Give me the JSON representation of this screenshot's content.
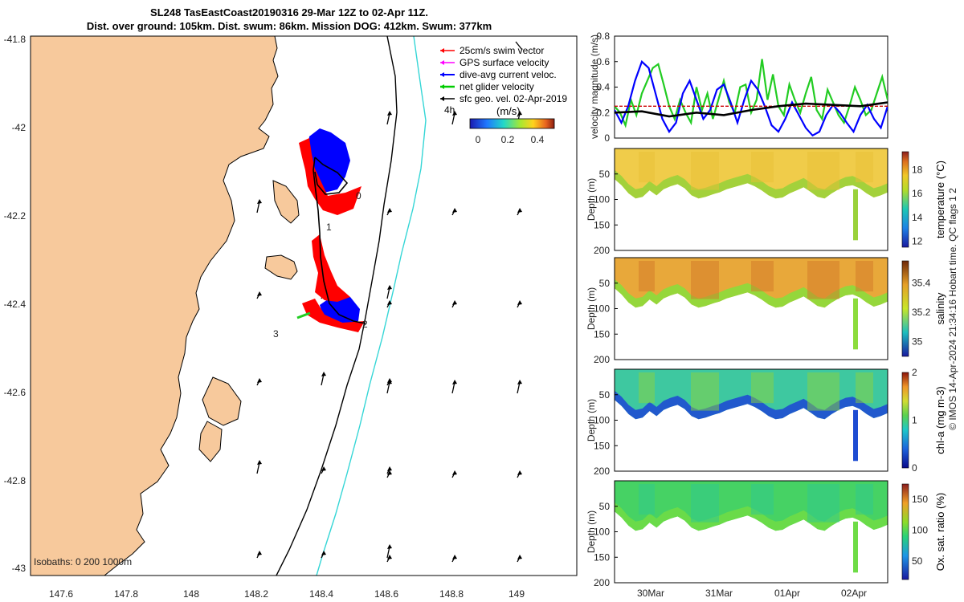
{
  "title": {
    "line1": "SL248 TasEastCoast20190316 29-Mar 12Z to 02-Apr 11Z.",
    "line2": "Dist. over ground: 105km. Dist. swum: 86km. Mission DOG: 412km. Swum: 377km"
  },
  "colors": {
    "land": "#f7c99c",
    "track_red": "#ff0000",
    "track_blue": "#0000ff",
    "cyan": "#35d6d6",
    "green": "#22cc22"
  },
  "map": {
    "lon_ticks": [
      "147.6",
      "147.8",
      "148",
      "148.2",
      "148.4",
      "148.6",
      "148.8",
      "149"
    ],
    "lat_ticks": [
      "-41.8",
      "-42",
      "-42.2",
      "-42.4",
      "-42.6",
      "-42.8",
      "-43"
    ],
    "legend": [
      {
        "label": "25cm/s swim vector",
        "color": "#ff0000",
        "icon": "red-arrow-icon"
      },
      {
        "label": "GPS surface velocity",
        "color": "#ff00ff",
        "icon": "magenta-arrow-icon"
      },
      {
        "label": "dive-avg current veloc.",
        "color": "#0000ff",
        "icon": "blue-arrow-icon"
      },
      {
        "label": "net glider velocity",
        "color": "#00cc00",
        "icon": "green-arrow-icon"
      },
      {
        "label": "sfc geo. vel. 02-Apr-2019",
        "color": "#000000",
        "icon": "black-arrow-icon"
      }
    ],
    "colorbar": {
      "unit_label": "(m/s)",
      "ticks": [
        "0",
        "0.2",
        "0.4"
      ],
      "time_label": "4h"
    },
    "isobaths_label": "Isobaths: 0   200   1000m",
    "day_markers": [
      "0",
      "1",
      "2",
      "3"
    ]
  },
  "chart_data": [
    {
      "type": "line",
      "title": "",
      "ylabel": "velocity magnitude (m/s)",
      "ylim": [
        0,
        0.8
      ],
      "yticks": [
        "0",
        "0.2",
        "0.4",
        "0.6",
        "0.8"
      ],
      "x_range_days": [
        0,
        4
      ],
      "series": [
        {
          "name": "net glider velocity",
          "color": "#22cc22",
          "x": [
            0.0,
            0.08,
            0.16,
            0.24,
            0.32,
            0.4,
            0.48,
            0.56,
            0.64,
            0.72,
            0.8,
            0.88,
            0.96,
            1.04,
            1.12,
            1.2,
            1.28,
            1.36,
            1.44,
            1.52,
            1.6,
            1.68,
            1.76,
            1.84,
            1.92,
            2.0,
            2.08,
            2.16,
            2.24,
            2.32,
            2.4,
            2.48,
            2.56,
            2.64,
            2.72,
            2.8,
            2.88,
            2.96,
            3.04,
            3.12,
            3.2,
            3.28,
            3.36,
            3.44,
            3.52,
            3.6,
            3.68,
            3.76,
            3.84,
            3.92,
            4.0
          ],
          "values": [
            0.25,
            0.2,
            0.1,
            0.3,
            0.18,
            0.35,
            0.45,
            0.55,
            0.58,
            0.42,
            0.25,
            0.15,
            0.3,
            0.2,
            0.12,
            0.4,
            0.22,
            0.35,
            0.15,
            0.3,
            0.45,
            0.28,
            0.2,
            0.4,
            0.42,
            0.2,
            0.3,
            0.62,
            0.3,
            0.5,
            0.25,
            0.18,
            0.42,
            0.3,
            0.2,
            0.35,
            0.48,
            0.22,
            0.15,
            0.38,
            0.28,
            0.18,
            0.12,
            0.25,
            0.4,
            0.3,
            0.18,
            0.22,
            0.35,
            0.48,
            0.3
          ]
        },
        {
          "name": "dive-avg current veloc.",
          "color": "#0000ff",
          "x": [
            0.0,
            0.1,
            0.2,
            0.3,
            0.4,
            0.5,
            0.6,
            0.7,
            0.8,
            0.9,
            1.0,
            1.1,
            1.2,
            1.3,
            1.4,
            1.5,
            1.6,
            1.7,
            1.8,
            1.9,
            2.0,
            2.1,
            2.2,
            2.3,
            2.4,
            2.5,
            2.6,
            2.7,
            2.8,
            2.9,
            3.0,
            3.1,
            3.2,
            3.3,
            3.4,
            3.5,
            3.6,
            3.7,
            3.8,
            3.9,
            4.0
          ],
          "values": [
            0.22,
            0.12,
            0.25,
            0.45,
            0.6,
            0.55,
            0.35,
            0.15,
            0.05,
            0.12,
            0.35,
            0.45,
            0.3,
            0.15,
            0.22,
            0.38,
            0.42,
            0.28,
            0.12,
            0.3,
            0.45,
            0.38,
            0.25,
            0.1,
            0.05,
            0.15,
            0.28,
            0.18,
            0.08,
            0.02,
            0.05,
            0.18,
            0.26,
            0.2,
            0.12,
            0.05,
            0.18,
            0.26,
            0.15,
            0.08,
            0.25
          ]
        },
        {
          "name": "25cm/s swim vector",
          "color": "#cc0000",
          "x": [
            0,
            4
          ],
          "values": [
            0.25,
            0.25
          ]
        },
        {
          "name": "sfc geo. vel.",
          "color": "#000000",
          "x": [
            0.0,
            0.4,
            0.8,
            1.2,
            1.6,
            2.0,
            2.4,
            2.8,
            3.2,
            3.6,
            4.0
          ],
          "values": [
            0.2,
            0.21,
            0.17,
            0.2,
            0.18,
            0.22,
            0.25,
            0.27,
            0.26,
            0.25,
            0.28
          ]
        }
      ]
    },
    {
      "type": "heatmap",
      "variable": "temperature",
      "ylabel": "Depth (m)",
      "colorbar_label": "temperature (°C)",
      "ylim": [
        0,
        200
      ],
      "yticks": [
        "50",
        "100",
        "150",
        "200"
      ],
      "clim": [
        11.5,
        19.5
      ],
      "cb_ticks": [
        "12",
        "14",
        "16",
        "18"
      ]
    },
    {
      "type": "heatmap",
      "variable": "salinity",
      "ylabel": "Depth (m)",
      "colorbar_label": "salinity",
      "ylim": [
        0,
        200
      ],
      "yticks": [
        "50",
        "100",
        "150",
        "200"
      ],
      "clim": [
        34.9,
        35.55
      ],
      "cb_ticks": [
        "35",
        "35.2",
        "35.4"
      ]
    },
    {
      "type": "heatmap",
      "variable": "chl-a",
      "ylabel": "Depth (m)",
      "colorbar_label": "chl-a (mg m-3)",
      "ylim": [
        0,
        200
      ],
      "yticks": [
        "50",
        "100",
        "150",
        "200"
      ],
      "clim": [
        0,
        2
      ],
      "cb_ticks": [
        "0",
        "1",
        "2"
      ]
    },
    {
      "type": "heatmap",
      "variable": "oxygen",
      "ylabel": "Depth (m)",
      "colorbar_label": "Ox. sat. ratio (%)",
      "ylim": [
        0,
        200
      ],
      "yticks": [
        "50",
        "100",
        "150",
        "200"
      ],
      "clim": [
        20,
        175
      ],
      "cb_ticks": [
        "50",
        "100",
        "150"
      ]
    }
  ],
  "time_axis": {
    "ticks": [
      "30Mar",
      "31Mar",
      "01Apr",
      "02Apr"
    ]
  },
  "footer": {
    "credit": "© IMOS 14-Apr-2024 21:34:16 Hobart time. QC flags 1  2"
  }
}
